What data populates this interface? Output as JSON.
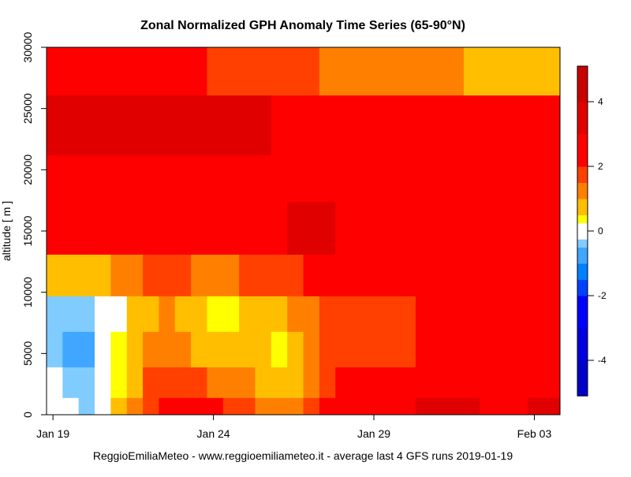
{
  "chart_data": {
    "type": "heatmap",
    "title": "Zonal Normalized GPH Anomaly Time Series (65-90°N)",
    "xlabel": "",
    "ylabel": "altitude [ m ]",
    "footer": "ReggioEmiliaMeteo - www.reggioemiliameteo.it - average last 4 GFS runs 2019-01-19",
    "x_ticks": [
      "Jan 19",
      "Jan 24",
      "Jan 29",
      "Feb 03"
    ],
    "x_tick_steps": [
      0,
      10,
      20,
      30
    ],
    "time_step_hours": 12,
    "n_steps": 32,
    "y_ticks": [
      0,
      5000,
      10000,
      15000,
      20000,
      25000,
      30000
    ],
    "ylim": [
      0,
      30000
    ],
    "altitude_bounds": [
      0,
      1400,
      3900,
      6800,
      9700,
      13100,
      17400,
      21200,
      26100,
      30000
    ],
    "level_codes": {
      "D": 3.5,
      "R": 2.5,
      "O": 1.75,
      "G": 1.25,
      "A": 0.75,
      "Y": 0.4,
      "W": 0,
      "L": -0.4,
      "B": -0.75
    },
    "rows_bottom_to_top": [
      "WWLWAGORRRROOGGGORRRRRRDDDDRRRDD",
      "WLLWYAOOOOGGGAAAGORRRRRRRRRRRRRR",
      "LBBWYAGGGAAAAAYAGOOOOOORRRRRRRRR",
      "LLLWWAAGAAYYAAAGGOOOOOORRRRRRRRR",
      "AAAAGGOOOGGGOOOORRRRRRRRRRRRRRRR",
      "RRRRRRRRRRRRRRRDDDRRRRRRRRRRRRRR",
      "RRRRRRRRRRRRRRRRRRRRRRRRRRRRRRRR",
      "DDDDDDDDDDDDDDRRRRRRRRRRRRRRRRRR",
      "RRRRRRRRRROOOOOOOGGGGGGGGGAAAAAA"
    ],
    "colorbar": {
      "breaks": [
        -5.1,
        -4,
        -3,
        -2,
        -1.5,
        -1,
        -0.5,
        -0.25,
        0.25,
        0.5,
        1,
        1.5,
        2,
        3,
        4,
        5.1
      ],
      "colors": [
        "#0000C8",
        "#0000E0",
        "#0000FF",
        "#0040FF",
        "#0080FF",
        "#40A6FF",
        "#80CCFF",
        "#FFFFFF",
        "#FFFF00",
        "#FFBF00",
        "#FF8000",
        "#FF4000",
        "#FF0000",
        "#E00000",
        "#C80000"
      ],
      "ticks": [
        "4",
        "2",
        "0",
        "-2",
        "-4"
      ],
      "tick_values": [
        4,
        2,
        0,
        -2,
        -4
      ]
    }
  }
}
